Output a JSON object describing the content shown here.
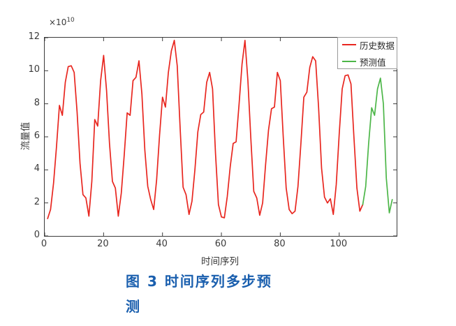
{
  "caption": {
    "line1": "图 3  时间序列多步预",
    "line2": "测",
    "full_text": "图 3 时间序列多步预测",
    "color": "#1a5fae"
  },
  "chart_data": {
    "type": "line",
    "title": "",
    "xlabel": "时间序列",
    "ylabel": "流量值",
    "y_exponent": {
      "base": "×10",
      "power": "10"
    },
    "xlim": [
      0,
      119.5
    ],
    "ylim": [
      0,
      12
    ],
    "x_ticks": [
      0,
      20,
      40,
      60,
      80,
      100
    ],
    "y_ticks": [
      0,
      2,
      4,
      6,
      8,
      10,
      12
    ],
    "grid": false,
    "legend_position": "top-right-inside",
    "axis_color": "#3a3a3a",
    "tick_label_color": "#3a3a3a",
    "series": [
      {
        "name": "历史数据",
        "color": "#e8261f",
        "x_start": 1,
        "x_step": 1,
        "values": [
          1.05,
          1.6,
          3.2,
          5.4,
          7.9,
          7.3,
          9.3,
          10.25,
          10.3,
          9.9,
          7.5,
          4.4,
          2.5,
          2.3,
          1.2,
          3.3,
          7.05,
          6.65,
          9.4,
          10.93,
          8.8,
          5.6,
          3.3,
          2.9,
          1.2,
          2.6,
          4.9,
          7.45,
          7.3,
          9.4,
          9.6,
          10.6,
          8.6,
          5.2,
          3.0,
          2.2,
          1.6,
          3.4,
          6.1,
          8.4,
          7.8,
          9.9,
          11.2,
          11.84,
          10.3,
          6.5,
          2.95,
          2.5,
          1.3,
          2.1,
          4.0,
          6.3,
          7.35,
          7.5,
          9.3,
          9.9,
          8.9,
          5.0,
          1.9,
          1.15,
          1.1,
          2.4,
          4.2,
          5.6,
          5.7,
          8.0,
          10.4,
          11.84,
          9.4,
          5.9,
          2.7,
          2.3,
          1.25,
          2.0,
          4.3,
          6.4,
          7.7,
          7.8,
          9.9,
          9.4,
          6.0,
          2.9,
          1.6,
          1.35,
          1.5,
          3.0,
          5.6,
          8.4,
          8.7,
          10.2,
          10.85,
          10.6,
          7.8,
          4.1,
          2.35,
          2.0,
          2.25,
          1.3,
          3.1,
          6.2,
          8.9,
          9.7,
          9.75,
          9.2,
          6.0,
          2.9,
          1.5,
          1.9
        ]
      },
      {
        "name": "预测值",
        "color": "#4cb648",
        "x_start": 108,
        "x_step": 1,
        "values": [
          1.9,
          3.0,
          5.6,
          7.76,
          7.3,
          8.9,
          9.55,
          8.0,
          3.5,
          1.4,
          2.2
        ]
      }
    ]
  }
}
